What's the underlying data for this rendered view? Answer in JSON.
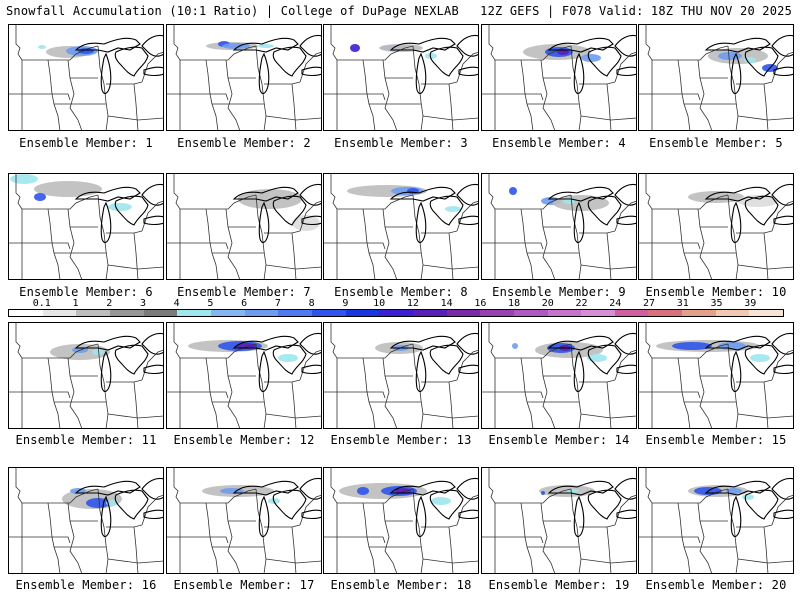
{
  "header": {
    "left_title": "Snowfall Accumulation (10:1 Ratio) | College of DuPage NEXLAB",
    "right_title": "12Z GEFS | F078 Valid: 18Z THU NOV 20 2025"
  },
  "legend": {
    "labels": [
      "0.1",
      "1",
      "2",
      "3",
      "4",
      "5",
      "6",
      "7",
      "8",
      "9",
      "10",
      "12",
      "14",
      "16",
      "18",
      "20",
      "22",
      "24",
      "27",
      "31",
      "35",
      "39"
    ],
    "colors": [
      "#ffffff",
      "#e6e6e6",
      "#bdbdbd",
      "#969696",
      "#7a7a7a",
      "#9fe7ee",
      "#83b7ef",
      "#6e9cf0",
      "#4d7cf0",
      "#2f55ea",
      "#1a36e0",
      "#3b1fd0",
      "#5a1fb4",
      "#7a2aa8",
      "#9a40b0",
      "#b058c0",
      "#c673cc",
      "#d68fd4",
      "#cf5fa0",
      "#d8707e",
      "#e2a08a",
      "#f0c9b0",
      "#f7e4d4"
    ]
  },
  "members": [
    {
      "caption": "Ensemble Member: 1"
    },
    {
      "caption": "Ensemble Member: 2"
    },
    {
      "caption": "Ensemble Member: 3"
    },
    {
      "caption": "Ensemble Member: 4"
    },
    {
      "caption": "Ensemble Member: 5"
    },
    {
      "caption": "Ensemble Member: 6"
    },
    {
      "caption": "Ensemble Member: 7"
    },
    {
      "caption": "Ensemble Member: 8"
    },
    {
      "caption": "Ensemble Member: 9"
    },
    {
      "caption": "Ensemble Member: 10"
    },
    {
      "caption": "Ensemble Member: 11"
    },
    {
      "caption": "Ensemble Member: 12"
    },
    {
      "caption": "Ensemble Member: 13"
    },
    {
      "caption": "Ensemble Member: 14"
    },
    {
      "caption": "Ensemble Member: 15"
    },
    {
      "caption": "Ensemble Member: 16"
    },
    {
      "caption": "Ensemble Member: 17"
    },
    {
      "caption": "Ensemble Member: 18"
    },
    {
      "caption": "Ensemble Member: 19"
    },
    {
      "caption": "Ensemble Member: 20"
    }
  ]
}
